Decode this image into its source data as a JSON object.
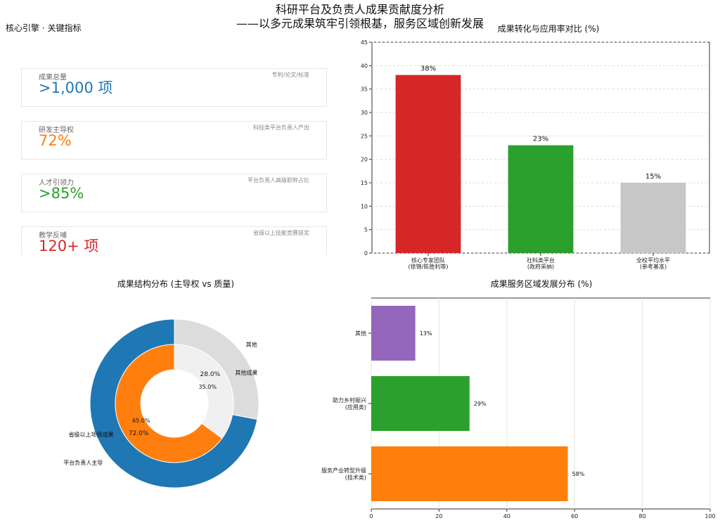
{
  "page": {
    "title": "科研平台及负责人成果贡献度分析",
    "subtitle": "——以多元成果筑牢引领根基，服务区域创新发展"
  },
  "kpi_section": {
    "header": "核心引擎 · 关键指标",
    "cards": [
      {
        "label": "成果总量",
        "value": ">1,000 项",
        "note": "专利/论文/标准",
        "color": "#1f77b4"
      },
      {
        "label": "研发主导权",
        "value": "72%",
        "note": "科技类平台负责人产出",
        "color": "#ff7f0e"
      },
      {
        "label": "人才引领力",
        "value": ">85%",
        "note": "平台负责人高级职称占比",
        "color": "#2ca02c"
      },
      {
        "label": "教学反哺",
        "value": "120+ 项",
        "note": "省级以上技能竞赛获奖",
        "color": "#d62728"
      }
    ]
  },
  "chart_data": [
    {
      "type": "bar",
      "title": "成果转化与应用率对比 (%)",
      "categories": [
        "核心专家团队\n(徐锦/陈胜利等)",
        "社科类平台\n(政府采纳)",
        "全校平均水平\n(参考基准)"
      ],
      "values": [
        38,
        23,
        15
      ],
      "value_labels": [
        "38%",
        "23%",
        "15%"
      ],
      "colors": [
        "#d62728",
        "#2ca02c",
        "#c7c7c7"
      ],
      "ylim": [
        0,
        45
      ],
      "yticks": [
        0,
        5,
        10,
        15,
        20,
        25,
        30,
        35,
        40,
        45
      ],
      "grid": true
    },
    {
      "type": "pie",
      "subtype": "nested-donut",
      "title": "成果结构分布 (主导权 vs 质量)",
      "outer_ring": [
        {
          "label": "平台负责人主导",
          "value": 72.0,
          "value_label": "72.0%",
          "color": "#1f77b4"
        },
        {
          "label": "其他",
          "value": 28.0,
          "value_label": "28.0%",
          "color": "#dcdcdc"
        }
      ],
      "inner_ring": [
        {
          "label": "省级以上项目成果",
          "value": 65.0,
          "value_label": "65.0%",
          "color": "#ff7f0e"
        },
        {
          "label": "其他成果",
          "value": 35.0,
          "value_label": "35.0%",
          "color": "#f0f0f0"
        }
      ]
    },
    {
      "type": "bar",
      "orientation": "horizontal",
      "title": "成果服务区域发展分布 (%)",
      "categories": [
        "服务产业转型升级\n(技术类)",
        "助力乡村振兴\n(应用类)",
        "其他"
      ],
      "values": [
        58,
        29,
        13
      ],
      "value_labels": [
        "58%",
        "29%",
        "13%"
      ],
      "colors": [
        "#ff7f0e",
        "#2ca02c",
        "#9467bd"
      ],
      "xlim": [
        0,
        100
      ],
      "xticks": [
        0,
        20,
        40,
        60,
        80,
        100
      ],
      "grid": true
    }
  ]
}
